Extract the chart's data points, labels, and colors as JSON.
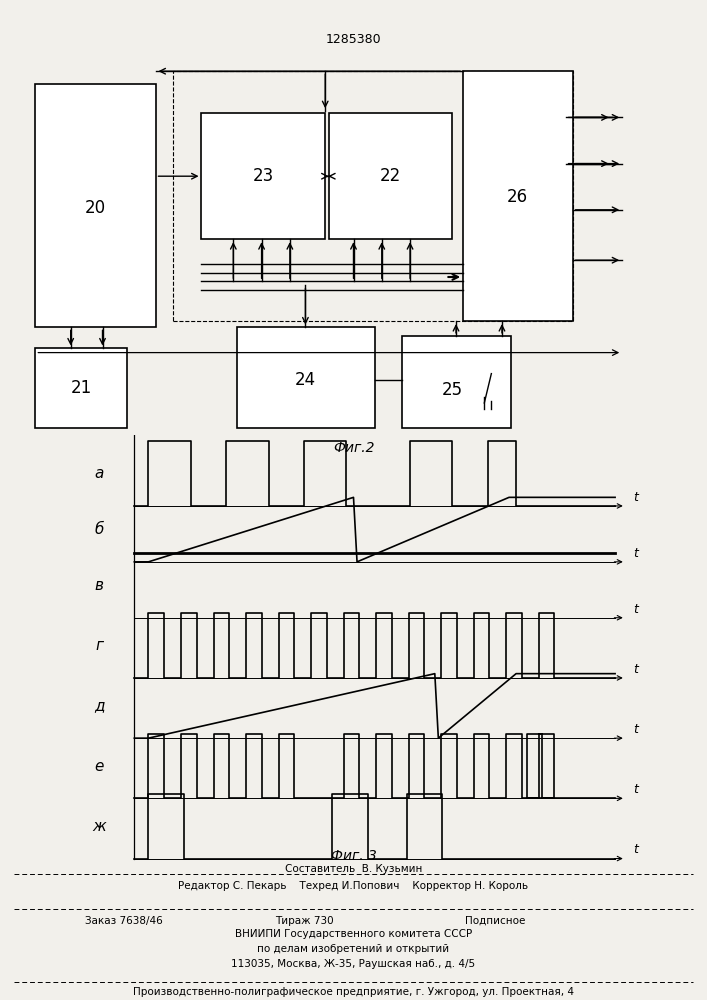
{
  "title": "1285380",
  "fig2_label": "Фиг.2",
  "fig3_label": "Фиг. 3",
  "waveform_labels": [
    "a",
    "б",
    "в",
    "г",
    "д",
    "е",
    "ж"
  ],
  "footer_lines": [
    "Составитель  В. Кузьмин",
    "Редактор С. Пекарь    Техред И.Попович    Корректор Н. Король",
    "Заказ 7638/46",
    "Тираж 730",
    "Подписное",
    "ВНИИПИ Государственного комитета СССР",
    "по делам изобретений и открытий",
    "113035, Москва, Ж-35, Раушская наб., д. 4/5",
    "Производственно-полиграфическое предприятие, г. Ужгород, ул. Проектная, 4"
  ],
  "bg_color": "#f2f0eb"
}
